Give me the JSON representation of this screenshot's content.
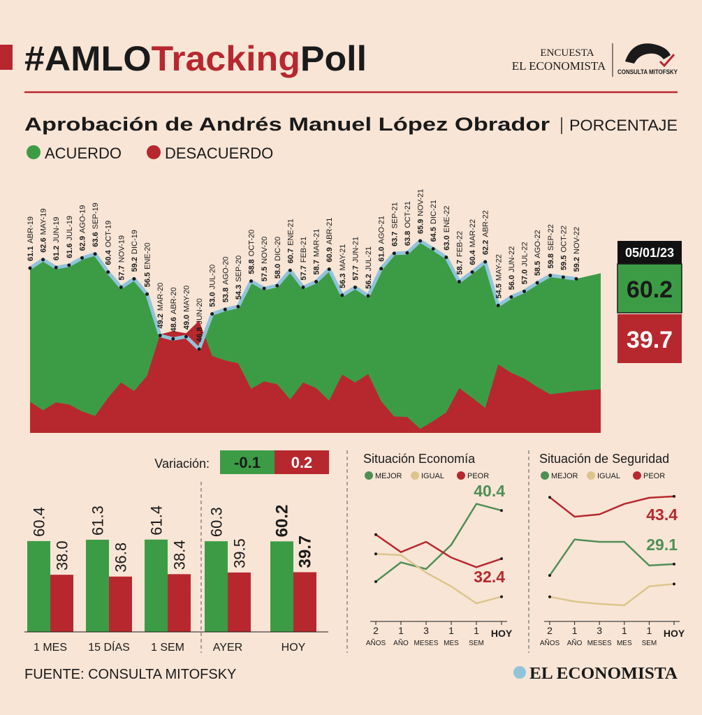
{
  "header": {
    "title_parts": [
      "#AMLO",
      "Tracking",
      "Poll"
    ],
    "logo_lines": [
      "ENCUESTA",
      "EL ECONOMISTA"
    ],
    "logo_brand": "CONSULTA MITOFSKY"
  },
  "footer": {
    "source": "FUENTE: CONSULTA MITOFSKY",
    "brand": "EL ECONOMISTA"
  },
  "chart_data": [
    {
      "type": "area",
      "title": "Aprobación de Andrés Manuel López Obrador",
      "subtitle": "PORCENTAJE",
      "categories": [
        "ABR-19",
        "MAY-19",
        "JUN-19",
        "JUL-19",
        "AGO-19",
        "SEP-19",
        "OCT-19",
        "NOV-19",
        "DIC-19",
        "ENE-20",
        "MAR-20",
        "ABR-20",
        "MAY-20",
        "JUN-20",
        "JUL-20",
        "AGO-20",
        "SEP-20",
        "OCT-20",
        "NOV-20",
        "DIC-20",
        "ENE-21",
        "FEB-21",
        "MAR-21",
        "ABR-21",
        "MAY-21",
        "JUN-21",
        "JUL-21",
        "AGO-21",
        "SEP-21",
        "OCT-21",
        "NOV-21",
        "DIC-21",
        "ENE-22",
        "FEB-22",
        "MAR-22",
        "ABR-22",
        "MAY-22",
        "JUN-22",
        "JUL-22",
        "AGO-22",
        "SEP-22",
        "OCT-22",
        "NOV-22"
      ],
      "series": [
        {
          "name": "ACUERDO",
          "color": "#3c9c45",
          "values": [
            61.1,
            62.6,
            61.2,
            61.6,
            62.9,
            63.6,
            60.4,
            57.7,
            59.2,
            56.5,
            49.2,
            48.6,
            49.0,
            46.8,
            53.0,
            53.8,
            54.3,
            58.8,
            57.5,
            58.0,
            60.7,
            57.7,
            58.7,
            60.9,
            56.3,
            57.7,
            56.2,
            61.0,
            63.7,
            63.8,
            65.9,
            64.5,
            63.0,
            58.7,
            60.4,
            62.2,
            54.5,
            56.0,
            57.0,
            58.5,
            59.8,
            59.5,
            59.2
          ],
          "value_labels": [
            "61.1",
            "62.6",
            "61.2",
            "61.6",
            "62.9",
            "63.6",
            "60.4",
            "57.7",
            "59.2",
            "56.5",
            "49.2",
            "48.6",
            "49.0",
            "46.8",
            "53.0",
            "53.8",
            "54.3",
            "58.8",
            "57.5",
            "58.0",
            "60.7",
            "57.7",
            "58.7",
            "60.9",
            "56.3",
            "57.7",
            "56.2",
            "61.0",
            "63.7",
            "63.8",
            "65.9",
            "64.5",
            "63.0",
            "58.7",
            "60.4",
            "62.2",
            "54.5",
            "56.0",
            "57.0",
            "58.5",
            "59.8",
            "59.5",
            "59.2"
          ]
        },
        {
          "name": "DESACUERDO",
          "color": "#b7282e",
          "values": [
            37.5,
            36.0,
            37.4,
            37.0,
            35.8,
            35.0,
            38.2,
            40.9,
            39.4,
            42.1,
            49.4,
            50.0,
            49.6,
            51.8,
            45.6,
            44.8,
            44.3,
            39.8,
            41.1,
            40.6,
            37.9,
            40.9,
            39.9,
            37.7,
            42.3,
            40.9,
            42.4,
            37.6,
            34.9,
            34.8,
            32.7,
            34.1,
            35.6,
            39.9,
            38.2,
            36.4,
            44.1,
            42.6,
            41.6,
            40.1,
            38.8,
            39.1,
            39.4
          ]
        }
      ],
      "latest": {
        "date": "05/01/23",
        "values": [
          60.2,
          39.7
        ]
      },
      "ylim": [
        32,
        68
      ],
      "line_color": "#8fc4db"
    },
    {
      "type": "bar",
      "variation_label": "Variación:",
      "variation": [
        -0.1,
        0.2
      ],
      "categories": [
        "1 MES",
        "15 DÍAS",
        "1 SEM",
        "AYER",
        "HOY"
      ],
      "series": [
        {
          "name": "ACUERDO",
          "color": "#3c9c45",
          "values": [
            60.4,
            61.3,
            61.4,
            60.3,
            60.2
          ]
        },
        {
          "name": "DESACUERDO",
          "color": "#b7282e",
          "values": [
            38.0,
            36.8,
            38.4,
            39.5,
            39.7
          ],
          "value_labels": [
            "38.0",
            "36.8",
            "38.4",
            "39.5",
            "39.7"
          ]
        }
      ],
      "ylim": [
        0,
        65
      ]
    },
    {
      "type": "line",
      "title": "Situación Economía",
      "categories": [
        [
          "2",
          "AÑOS"
        ],
        [
          "1",
          "AÑO"
        ],
        [
          "3",
          "MESES"
        ],
        [
          "1",
          "MES"
        ],
        [
          "1",
          "SEM"
        ],
        [
          "HOY"
        ]
      ],
      "series": [
        {
          "name": "MEJOR",
          "color": "#4f8f55",
          "values": [
            28.6,
            31.8,
            30.7,
            34.7,
            41.5,
            40.4
          ]
        },
        {
          "name": "IGUAL",
          "color": "#dcc58c",
          "values": [
            33.2,
            33.0,
            30.1,
            27.8,
            25.0,
            26.1
          ]
        },
        {
          "name": "PEOR",
          "color": "#b7282e",
          "values": [
            36.4,
            33.5,
            35.2,
            32.6,
            31.0,
            32.4
          ]
        }
      ],
      "ylim": [
        22,
        44
      ]
    },
    {
      "type": "line",
      "title": "Situación de Seguridad",
      "categories": [
        [
          "2",
          "AÑOS"
        ],
        [
          "1",
          "AÑO"
        ],
        [
          "3",
          "MESES"
        ],
        [
          "1",
          "MES"
        ],
        [
          "1",
          "SEM"
        ],
        [
          "HOY"
        ]
      ],
      "series": [
        {
          "name": "MEJOR",
          "color": "#4f8f55",
          "values": [
            26.7,
            34.3,
            33.8,
            33.8,
            28.8,
            29.1
          ]
        },
        {
          "name": "IGUAL",
          "color": "#dcc58c",
          "values": [
            22.2,
            21.2,
            20.7,
            20.4,
            24.4,
            24.9
          ]
        },
        {
          "name": "PEOR",
          "color": "#b7282e",
          "values": [
            43.2,
            39.1,
            39.6,
            41.8,
            43.1,
            43.4
          ]
        }
      ],
      "ylim": [
        17,
        45
      ]
    }
  ]
}
